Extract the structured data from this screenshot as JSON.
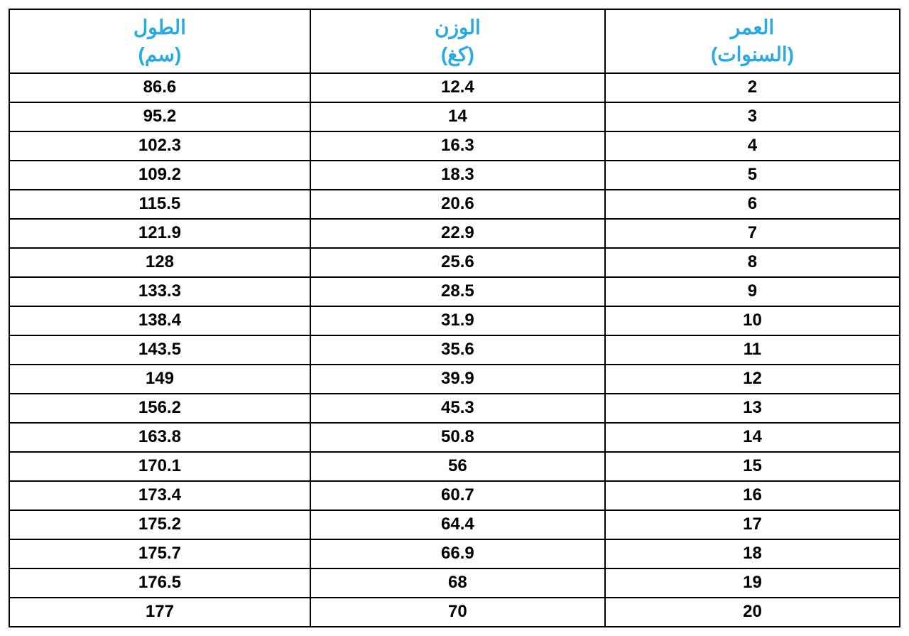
{
  "table": {
    "type": "table",
    "background_color": "#ffffff",
    "border_color": "#000000",
    "border_width": 2,
    "header_text_color": "#29abe2",
    "header_fontsize": 28,
    "header_fontweight": "bold",
    "cell_text_color": "#000000",
    "cell_fontsize": 24,
    "cell_fontweight": "bold",
    "columns": [
      {
        "key": "height",
        "label_line1": "الطول",
        "label_line2": "(سم)",
        "width_pct": 33.8,
        "align": "center"
      },
      {
        "key": "weight",
        "label_line1": "الوزن",
        "label_line2": "(كغ)",
        "width_pct": 33.1,
        "align": "center"
      },
      {
        "key": "age",
        "label_line1": "العمر",
        "label_line2": "(السنوات)",
        "width_pct": 33.1,
        "align": "center"
      }
    ],
    "rows": [
      {
        "height": "86.6",
        "weight": "12.4",
        "age": "2"
      },
      {
        "height": "95.2",
        "weight": "14",
        "age": "3"
      },
      {
        "height": "102.3",
        "weight": "16.3",
        "age": "4"
      },
      {
        "height": "109.2",
        "weight": "18.3",
        "age": "5"
      },
      {
        "height": "115.5",
        "weight": "20.6",
        "age": "6"
      },
      {
        "height": "121.9",
        "weight": "22.9",
        "age": "7"
      },
      {
        "height": "128",
        "weight": "25.6",
        "age": "8"
      },
      {
        "height": "133.3",
        "weight": "28.5",
        "age": "9"
      },
      {
        "height": "138.4",
        "weight": "31.9",
        "age": "10"
      },
      {
        "height": "143.5",
        "weight": "35.6",
        "age": "11"
      },
      {
        "height": "149",
        "weight": "39.9",
        "age": "12"
      },
      {
        "height": "156.2",
        "weight": "45.3",
        "age": "13"
      },
      {
        "height": "163.8",
        "weight": "50.8",
        "age": "14"
      },
      {
        "height": "170.1",
        "weight": "56",
        "age": "15"
      },
      {
        "height": "173.4",
        "weight": "60.7",
        "age": "16"
      },
      {
        "height": "175.2",
        "weight": "64.4",
        "age": "17"
      },
      {
        "height": "175.7",
        "weight": "66.9",
        "age": "18"
      },
      {
        "height": "176.5",
        "weight": "68",
        "age": "19"
      },
      {
        "height": "177",
        "weight": "70",
        "age": "20"
      }
    ]
  }
}
